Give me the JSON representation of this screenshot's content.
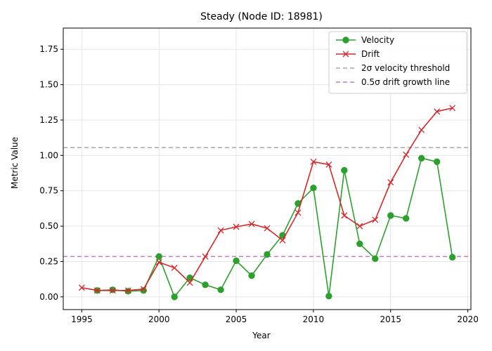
{
  "chart_data": {
    "type": "line",
    "title": "Steady (Node ID: 18981)",
    "xlabel": "Year",
    "ylabel": "Metric Value",
    "xlim": [
      1993.8,
      2020.2
    ],
    "ylim": [
      -0.09,
      1.9
    ],
    "xticks": [
      1995,
      2000,
      2005,
      2010,
      2015,
      2020
    ],
    "xtick_labels": [
      "1995",
      "2000",
      "2005",
      "2010",
      "2015",
      "2020"
    ],
    "yticks": [
      0.0,
      0.25,
      0.5,
      0.75,
      1.0,
      1.25,
      1.5,
      1.75
    ],
    "ytick_labels": [
      "0.00",
      "0.25",
      "0.50",
      "0.75",
      "1.00",
      "1.25",
      "1.50",
      "1.75"
    ],
    "grid": true,
    "legend_position": "top-right",
    "series": [
      {
        "name": "Velocity",
        "color": "#2ca02c",
        "marker": "circle",
        "x": [
          1996,
          1997,
          1998,
          1999,
          2000,
          2001,
          2002,
          2003,
          2004,
          2005,
          2006,
          2007,
          2008,
          2009,
          2010,
          2011,
          2012,
          2013,
          2014,
          2015,
          2016,
          2017,
          2018,
          2019
        ],
        "y": [
          0.045,
          0.05,
          0.04,
          0.045,
          0.285,
          0.0,
          0.135,
          0.085,
          0.05,
          0.255,
          0.15,
          0.3,
          0.435,
          0.66,
          0.77,
          0.005,
          0.895,
          0.375,
          0.27,
          0.575,
          0.555,
          0.98,
          0.955,
          0.28
        ]
      },
      {
        "name": "Drift",
        "color": "#d62728",
        "marker": "x",
        "x": [
          1995,
          1996,
          1997,
          1998,
          1999,
          2000,
          2001,
          2002,
          2003,
          2004,
          2005,
          2006,
          2007,
          2008,
          2009,
          2010,
          2011,
          2012,
          2013,
          2014,
          2015,
          2016,
          2017,
          2018,
          2019
        ],
        "y": [
          0.065,
          0.045,
          0.045,
          0.045,
          0.055,
          0.245,
          0.205,
          0.1,
          0.285,
          0.47,
          0.495,
          0.515,
          0.485,
          0.4,
          0.595,
          0.955,
          0.935,
          0.575,
          0.5,
          0.545,
          0.81,
          1.005,
          1.18,
          1.31,
          1.335
        ]
      }
    ],
    "hlines": [
      {
        "name": "2σ velocity threshold",
        "y": 1.055,
        "color": "#aaaaaa",
        "style": "dashed"
      },
      {
        "name": "0.5σ drift growth line",
        "y": 0.285,
        "color": "#c07ec0",
        "style": "dashed"
      }
    ]
  }
}
